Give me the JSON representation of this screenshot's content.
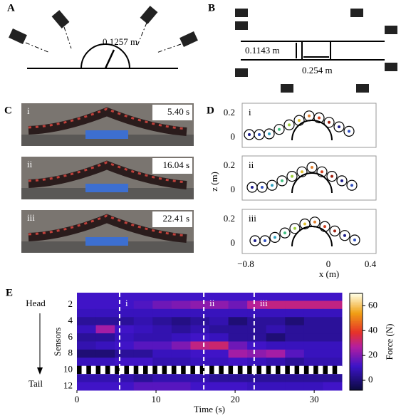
{
  "panel_a": {
    "label": "A",
    "dimension": "0.1257 m"
  },
  "panel_b": {
    "label": "B",
    "height": "0.1143 m",
    "width": "0.254 m"
  },
  "panel_c": {
    "label": "C",
    "frames": [
      {
        "roman": "i",
        "time": "5.40 s"
      },
      {
        "roman": "ii",
        "time": "16.04 s"
      },
      {
        "roman": "iii",
        "time": "22.41 s"
      }
    ]
  },
  "panel_d": {
    "label": "D",
    "ylabel": "z (m)",
    "xlabel": "x (m)",
    "yticks": [
      "0.2",
      "0"
    ],
    "xticks": [
      "−0.8",
      "0",
      "0.4"
    ],
    "subplots": [
      "i",
      "ii",
      "iii"
    ]
  },
  "chart_data": {
    "type": "heatmap",
    "label": "E",
    "xlabel": "Time (s)",
    "ylabel": "Sensors",
    "head_label": "Head",
    "tail_label": "Tail",
    "xlim": [
      0,
      33.5
    ],
    "xticks": [
      0,
      10,
      20,
      30
    ],
    "rows": [
      null,
      2,
      null,
      4,
      null,
      6,
      null,
      8,
      null,
      10,
      null,
      12
    ],
    "clim": [
      -8,
      70
    ],
    "cticks": [
      0,
      20,
      40,
      60
    ],
    "clabel": "Force (N)",
    "markers": [
      {
        "x": 5.4,
        "label": "i"
      },
      {
        "x": 16.04,
        "label": "ii"
      },
      {
        "x": 22.41,
        "label": "iii"
      }
    ],
    "values": [
      [
        12,
        12,
        12,
        12,
        12,
        12,
        12,
        12,
        12,
        12,
        12,
        12,
        12,
        12
      ],
      [
        12,
        12,
        12,
        14,
        18,
        20,
        22,
        22,
        18,
        28,
        30,
        30,
        30,
        30
      ],
      [
        10,
        10,
        10,
        10,
        10,
        10,
        10,
        10,
        10,
        10,
        10,
        10,
        10,
        10
      ],
      [
        5,
        5,
        5,
        8,
        5,
        2,
        5,
        8,
        0,
        5,
        5,
        0,
        5,
        5
      ],
      [
        10,
        25,
        12,
        10,
        8,
        5,
        8,
        5,
        5,
        5,
        8,
        5,
        5,
        5
      ],
      [
        5,
        5,
        10,
        8,
        8,
        10,
        12,
        10,
        5,
        5,
        0,
        5,
        5,
        5
      ],
      [
        8,
        10,
        12,
        15,
        15,
        20,
        30,
        32,
        18,
        12,
        10,
        10,
        10,
        10
      ],
      [
        0,
        0,
        5,
        5,
        10,
        10,
        12,
        12,
        25,
        22,
        25,
        15,
        10,
        10
      ],
      [
        10,
        10,
        12,
        12,
        8,
        8,
        10,
        10,
        12,
        10,
        8,
        5,
        8,
        8
      ],
      [
        null,
        null,
        null,
        null,
        null,
        null,
        null,
        null,
        null,
        null,
        null,
        null,
        null,
        null
      ],
      [
        8,
        8,
        8,
        5,
        8,
        8,
        8,
        5,
        5,
        5,
        5,
        5,
        5,
        5
      ],
      [
        12,
        12,
        12,
        15,
        15,
        15,
        12,
        12,
        12,
        10,
        10,
        10,
        10,
        12
      ]
    ]
  }
}
